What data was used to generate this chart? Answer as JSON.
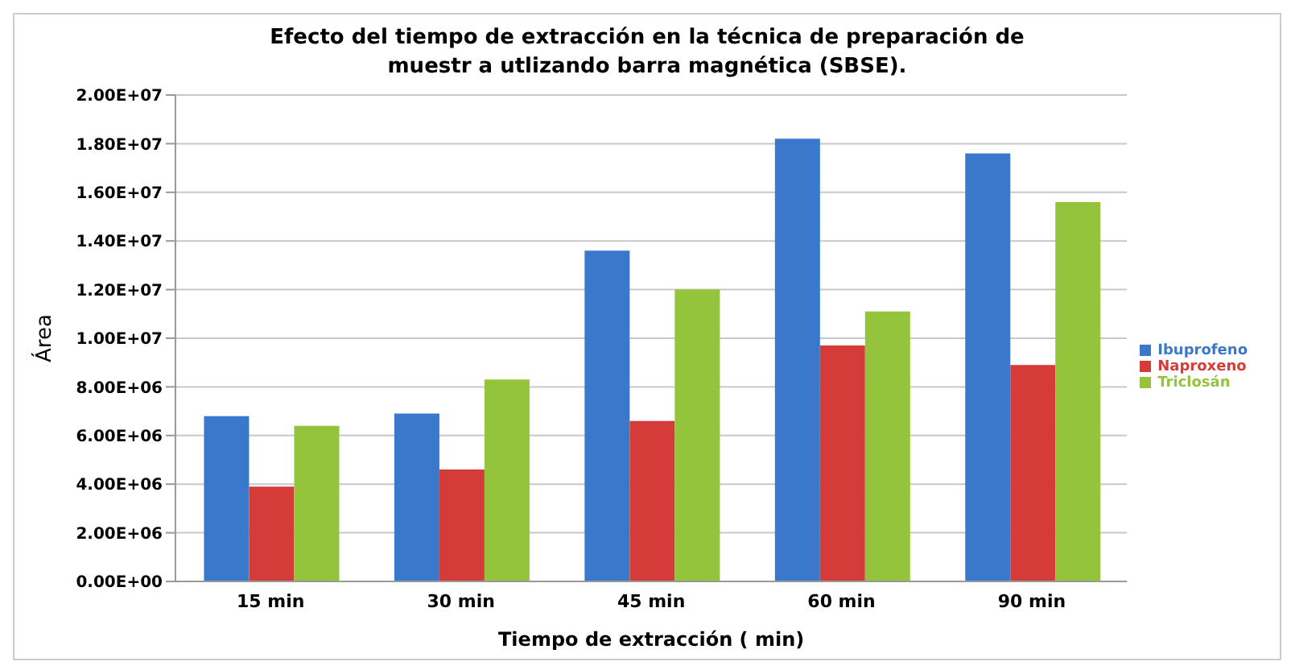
{
  "chart_data": {
    "type": "bar",
    "title": "Efecto  del tiempo de  extracción en la  técnica de preparación de muestr a utlizando barra magnética (SBSE).",
    "xlabel": "Tiempo de extracción ( min)",
    "ylabel": "Área",
    "categories": [
      "15 min",
      "30 min",
      "45 min",
      "60 min",
      "90 min"
    ],
    "series": [
      {
        "name": "Ibuprofeno",
        "color": "#3a78cc",
        "values": [
          6800000,
          6900000,
          13600000,
          18200000,
          17600000
        ]
      },
      {
        "name": "Naproxeno",
        "color": "#d43c3a",
        "values": [
          3900000,
          4600000,
          6600000,
          9700000,
          8900000
        ]
      },
      {
        "name": "Triclosán",
        "color": "#93c43c",
        "values": [
          6400000,
          8300000,
          12000000,
          11100000,
          15600000
        ]
      }
    ],
    "ylim": [
      0,
      20000000
    ],
    "yticks": [
      {
        "value": 0,
        "label": "0.00E+00"
      },
      {
        "value": 2000000,
        "label": "2.00E+06"
      },
      {
        "value": 4000000,
        "label": "4.00E+06"
      },
      {
        "value": 6000000,
        "label": "6.00E+06"
      },
      {
        "value": 8000000,
        "label": "8.00E+06"
      },
      {
        "value": 10000000,
        "label": "1.00E+07"
      },
      {
        "value": 12000000,
        "label": "1.20E+07"
      },
      {
        "value": 14000000,
        "label": "1.40E+07"
      },
      {
        "value": 16000000,
        "label": "1.60E+07"
      },
      {
        "value": 18000000,
        "label": "1.80E+07"
      },
      {
        "value": 20000000,
        "label": "2.00E+07"
      }
    ],
    "grid": "y",
    "legend": "right"
  }
}
